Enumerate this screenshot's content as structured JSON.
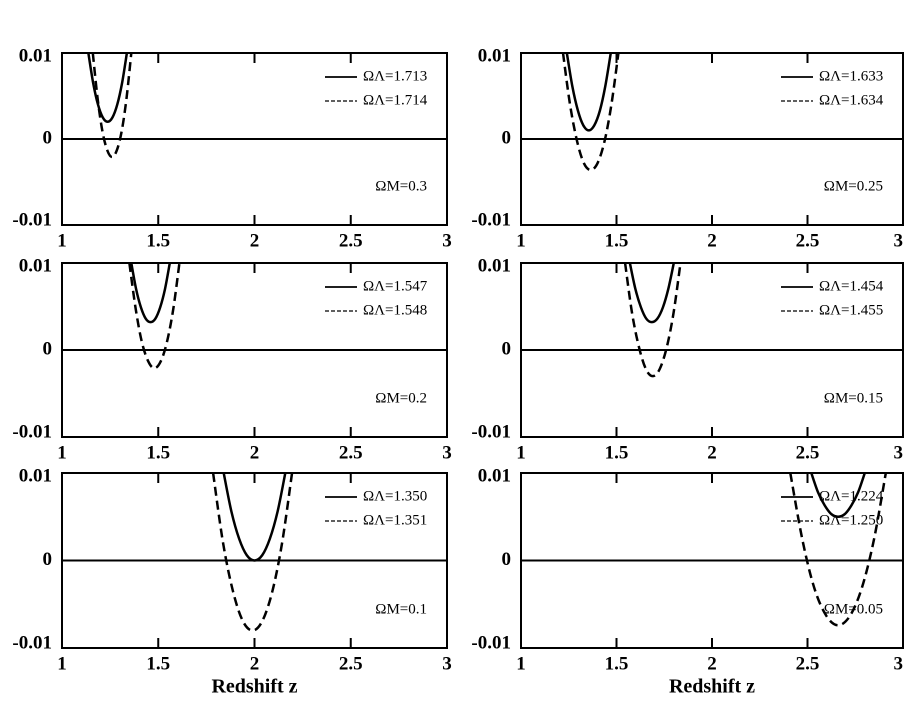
{
  "chart_data": [
    {
      "type": "line",
      "xlim": [
        1,
        3
      ],
      "ylim": [
        -0.01,
        0.01
      ],
      "xticks": [
        1,
        1.5,
        2,
        2.5,
        3
      ],
      "yticks": [
        -0.01,
        0,
        0.01
      ],
      "annotation": "ΩM=0.3",
      "series": [
        {
          "name": "ΩΛ=1.713",
          "color": "#000000",
          "dash": false,
          "x": [
            1.137,
            1.162,
            1.187,
            1.212,
            1.237,
            1.262,
            1.287,
            1.312,
            1.337
          ],
          "values": [
            0.01,
            0.0065,
            0.004,
            0.0025,
            0.002,
            0.0025,
            0.004,
            0.0065,
            0.01
          ]
        },
        {
          "name": "ΩΛ=1.714",
          "color": "#000000",
          "dash": true,
          "x": [
            1.16,
            1.185,
            1.21,
            1.235,
            1.26,
            1.285,
            1.31,
            1.335,
            1.36
          ],
          "values": [
            0.01,
            0.0047,
            0.0009,
            -0.0013,
            -0.0021,
            -0.0013,
            0.0009,
            0.0047,
            0.01
          ]
        }
      ]
    },
    {
      "type": "line",
      "xlim": [
        1,
        3
      ],
      "ylim": [
        -0.01,
        0.01
      ],
      "xticks": [
        1,
        1.5,
        2,
        2.5,
        3
      ],
      "yticks": [
        -0.01,
        0,
        0.01
      ],
      "annotation": "ΩM=0.25",
      "series": [
        {
          "name": "ΩΛ=1.633",
          "color": "#000000",
          "dash": false,
          "x": [
            1.24,
            1.269,
            1.298,
            1.326,
            1.355,
            1.384,
            1.413,
            1.441,
            1.47
          ],
          "values": [
            0.01,
            0.0061,
            0.0033,
            0.0016,
            0.001,
            0.0016,
            0.0033,
            0.0061,
            0.01
          ]
        },
        {
          "name": "ΩΛ=1.634",
          "color": "#000000",
          "dash": true,
          "x": [
            1.22,
            1.256,
            1.293,
            1.329,
            1.365,
            1.401,
            1.438,
            1.474,
            1.51
          ],
          "values": [
            0.01,
            0.0041,
            -0.0002,
            -0.0028,
            -0.0036,
            -0.0028,
            -0.0002,
            0.0041,
            0.01
          ]
        }
      ]
    },
    {
      "type": "line",
      "xlim": [
        1,
        3
      ],
      "ylim": [
        -0.01,
        0.01
      ],
      "xticks": [
        1,
        1.5,
        2,
        2.5,
        3
      ],
      "yticks": [
        -0.01,
        0,
        0.01
      ],
      "annotation": "ΩM=0.2",
      "series": [
        {
          "name": "ΩΛ=1.547",
          "color": "#000000",
          "dash": false,
          "x": [
            1.36,
            1.385,
            1.41,
            1.435,
            1.46,
            1.485,
            1.51,
            1.535,
            1.56
          ],
          "values": [
            0.01,
            0.007,
            0.0049,
            0.0036,
            0.0032,
            0.0036,
            0.0049,
            0.007,
            0.01
          ]
        },
        {
          "name": "ΩΛ=1.548",
          "color": "#000000",
          "dash": true,
          "x": [
            1.35,
            1.383,
            1.415,
            1.448,
            1.48,
            1.513,
            1.545,
            1.578,
            1.61
          ],
          "values": [
            0.01,
            0.0047,
            0.0009,
            -0.0013,
            -0.0021,
            -0.0013,
            0.0009,
            0.0047,
            0.01
          ]
        }
      ]
    },
    {
      "type": "line",
      "xlim": [
        1,
        3
      ],
      "ylim": [
        -0.01,
        0.01
      ],
      "xticks": [
        1,
        1.5,
        2,
        2.5,
        3
      ],
      "yticks": [
        -0.01,
        0,
        0.01
      ],
      "annotation": "ΩM=0.15",
      "series": [
        {
          "name": "ΩΛ=1.454",
          "color": "#000000",
          "dash": false,
          "x": [
            1.57,
            1.599,
            1.628,
            1.656,
            1.685,
            1.714,
            1.743,
            1.771,
            1.8
          ],
          "values": [
            0.01,
            0.007,
            0.0049,
            0.0036,
            0.0032,
            0.0036,
            0.0049,
            0.007,
            0.01
          ]
        },
        {
          "name": "ΩΛ=1.455",
          "color": "#000000",
          "dash": true,
          "x": [
            1.545,
            1.581,
            1.618,
            1.654,
            1.69,
            1.726,
            1.763,
            1.799,
            1.835
          ],
          "values": [
            0.01,
            0.0043,
            0.0003,
            -0.0022,
            -0.003,
            -0.0022,
            0.0003,
            0.0043,
            0.01
          ]
        }
      ]
    },
    {
      "type": "line",
      "xlim": [
        1,
        3
      ],
      "ylim": [
        -0.01,
        0.01
      ],
      "xticks": [
        1,
        1.5,
        2,
        2.5,
        3
      ],
      "yticks": [
        -0.01,
        0,
        0.01
      ],
      "annotation": "ΩM=0.1",
      "xlabel": "Redshift  z",
      "series": [
        {
          "name": "ΩΛ=1.350",
          "color": "#000000",
          "dash": false,
          "x": [
            1.84,
            1.88,
            1.92,
            1.96,
            2,
            2.04,
            2.08,
            2.12,
            2.16
          ],
          "values": [
            0.01,
            0.0056,
            0.0025,
            0.0006,
            0,
            0.0006,
            0.0025,
            0.0056,
            0.01
          ]
        },
        {
          "name": "ΩΛ=1.351",
          "color": "#000000",
          "dash": true,
          "x": [
            1.785,
            1.836,
            1.888,
            1.939,
            1.99,
            2.041,
            2.093,
            2.144,
            2.195
          ],
          "values": [
            0.01,
            0.0021,
            -0.0035,
            -0.0069,
            -0.008,
            -0.0069,
            -0.0035,
            0.0021,
            0.01
          ]
        }
      ]
    },
    {
      "type": "line",
      "xlim": [
        1,
        3
      ],
      "ylim": [
        -0.01,
        0.01
      ],
      "xticks": [
        1,
        1.5,
        2,
        2.5,
        3
      ],
      "yticks": [
        -0.01,
        0,
        0.01
      ],
      "annotation": "ΩM=0.05",
      "xlabel": "Redshift z",
      "series": [
        {
          "name": "ΩΛ=1.224",
          "color": "#000000",
          "dash": false,
          "x": [
            2.52,
            2.555,
            2.59,
            2.625,
            2.66,
            2.695,
            2.73,
            2.765,
            2.8
          ],
          "values": [
            0.01,
            0.0078,
            0.0063,
            0.0053,
            0.005,
            0.0053,
            0.0063,
            0.0078,
            0.01
          ]
        },
        {
          "name": "ΩΛ=1.250",
          "color": "#000000",
          "dash": true,
          "x": [
            2.41,
            2.473,
            2.535,
            2.598,
            2.66,
            2.723,
            2.785,
            2.848,
            2.91
          ],
          "values": [
            0.01,
            0.0024,
            -0.0031,
            -0.0063,
            -0.0074,
            -0.0063,
            -0.0031,
            0.0024,
            0.01
          ]
        }
      ]
    }
  ]
}
